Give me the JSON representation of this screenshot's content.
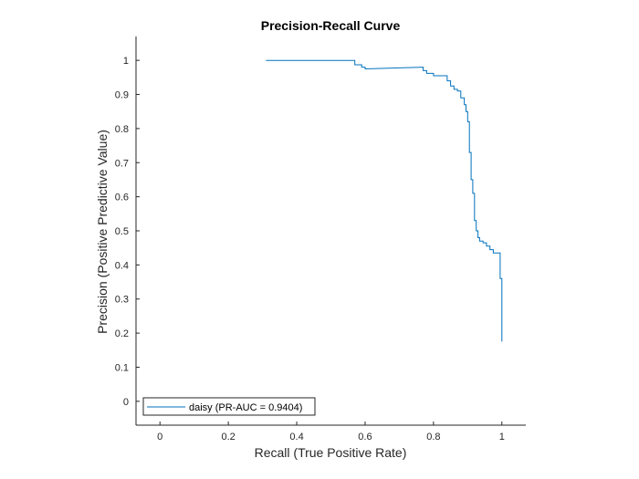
{
  "chart_data": {
    "type": "line",
    "title": "Precision-Recall Curve",
    "xlabel": "Recall (True Positive Rate)",
    "ylabel": "Precision (Positive Predictive Value)",
    "xlim": [
      -0.07,
      1.07
    ],
    "ylim": [
      -0.07,
      1.07
    ],
    "xticks": [
      "0",
      "0.2",
      "0.4",
      "0.6",
      "0.8",
      "1"
    ],
    "yticks": [
      "0",
      "0.1",
      "0.2",
      "0.3",
      "0.4",
      "0.5",
      "0.6",
      "0.7",
      "0.8",
      "0.9",
      "1"
    ],
    "grid": false,
    "legend_position": "bottom-left",
    "series": [
      {
        "name": "daisy (PR-AUC = 0.9404)",
        "color": "#0072BD",
        "x": [
          0.31,
          0.57,
          0.57,
          0.59,
          0.59,
          0.6,
          0.6,
          0.77,
          0.77,
          0.78,
          0.78,
          0.8,
          0.8,
          0.84,
          0.84,
          0.85,
          0.85,
          0.86,
          0.86,
          0.87,
          0.87,
          0.88,
          0.88,
          0.89,
          0.89,
          0.895,
          0.895,
          0.9,
          0.9,
          0.905,
          0.905,
          0.91,
          0.91,
          0.915,
          0.915,
          0.92,
          0.92,
          0.925,
          0.925,
          0.93,
          0.93,
          0.935,
          0.935,
          0.945,
          0.945,
          0.955,
          0.955,
          0.965,
          0.965,
          0.975,
          0.975,
          0.995,
          0.995,
          1.0,
          1.0
        ],
        "y": [
          1.0,
          1.0,
          0.987,
          0.987,
          0.98,
          0.98,
          0.975,
          0.98,
          0.97,
          0.97,
          0.962,
          0.962,
          0.955,
          0.955,
          0.94,
          0.94,
          0.925,
          0.925,
          0.915,
          0.915,
          0.91,
          0.91,
          0.89,
          0.89,
          0.87,
          0.87,
          0.85,
          0.85,
          0.82,
          0.82,
          0.73,
          0.73,
          0.65,
          0.65,
          0.61,
          0.61,
          0.53,
          0.53,
          0.5,
          0.5,
          0.48,
          0.48,
          0.47,
          0.47,
          0.465,
          0.465,
          0.455,
          0.455,
          0.445,
          0.445,
          0.435,
          0.435,
          0.36,
          0.36,
          0.175
        ]
      }
    ]
  }
}
